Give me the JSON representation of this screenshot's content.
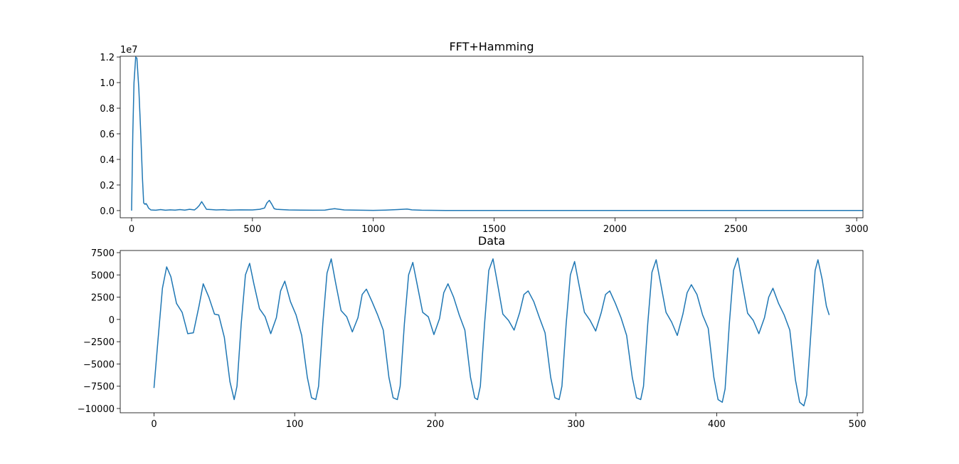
{
  "chart_data": [
    {
      "type": "line",
      "title": "FFT+Hamming",
      "offset_label": "1e7",
      "xlim": [
        -47,
        3026
      ],
      "xticks": [
        0,
        500,
        1000,
        1500,
        2000,
        2500,
        3000
      ],
      "ylim": [
        -0.056,
        1.206
      ],
      "yticks": [
        {
          "value": 0,
          "label": "0.0"
        },
        {
          "value": 0.2,
          "label": "0.2"
        },
        {
          "value": 0.4,
          "label": "0.4"
        },
        {
          "value": 0.6,
          "label": "0.6"
        },
        {
          "value": 0.8,
          "label": "0.8"
        },
        {
          "value": 1,
          "label": "1.0"
        },
        {
          "value": 1.2,
          "label": "1.2"
        }
      ],
      "grid": false,
      "series": [
        {
          "color": "#1f77b4",
          "x": [
            0,
            5,
            10,
            17,
            22,
            30,
            38,
            45,
            50,
            55,
            60,
            65,
            70,
            80,
            100,
            120,
            140,
            160,
            180,
            200,
            220,
            240,
            260,
            270,
            280,
            290,
            300,
            310,
            330,
            350,
            380,
            400,
            450,
            500,
            530,
            550,
            560,
            570,
            580,
            590,
            600,
            620,
            650,
            700,
            750,
            800,
            820,
            840,
            860,
            880,
            950,
            1000,
            1050,
            1100,
            1120,
            1140,
            1160,
            1200,
            1300,
            1500,
            2000,
            2500,
            3025
          ],
          "values": [
            0,
            0.6,
            1.0,
            1.2,
            1.19,
            0.95,
            0.6,
            0.25,
            0.06,
            0.05,
            0.055,
            0.04,
            0.02,
            0.005,
            0.003,
            0.008,
            0.003,
            0.006,
            0.004,
            0.008,
            0.004,
            0.01,
            0.005,
            0.02,
            0.04,
            0.07,
            0.04,
            0.01,
            0.008,
            0.005,
            0.007,
            0.004,
            0.006,
            0.005,
            0.01,
            0.02,
            0.06,
            0.08,
            0.05,
            0.015,
            0.01,
            0.008,
            0.005,
            0.004,
            0.003,
            0.004,
            0.01,
            0.015,
            0.01,
            0.005,
            0.003,
            0.002,
            0.004,
            0.008,
            0.01,
            0.012,
            0.006,
            0.003,
            0.001,
            0.001,
            0.001,
            0.001,
            0.001
          ]
        }
      ]
    },
    {
      "type": "line",
      "title": "Data",
      "xlim": [
        -24,
        504
      ],
      "xticks": [
        0,
        100,
        200,
        300,
        400,
        500
      ],
      "ylim": [
        -10480,
        7740
      ],
      "yticks": [
        {
          "value": -10000,
          "label": "−10000"
        },
        {
          "value": -7500,
          "label": "−7500"
        },
        {
          "value": -5000,
          "label": "−5000"
        },
        {
          "value": -2500,
          "label": "−2500"
        },
        0,
        2500,
        5000,
        7500
      ],
      "grid": false,
      "series": [
        {
          "color": "#1f77b4",
          "x": [
            0,
            3,
            6,
            9,
            12,
            16,
            20,
            24,
            28,
            32,
            35,
            39,
            43,
            46,
            50,
            54,
            57,
            59,
            62,
            65,
            68,
            71,
            75,
            79,
            83,
            87,
            90,
            93,
            97,
            101,
            105,
            109,
            112,
            115,
            117,
            120,
            123,
            126,
            129,
            133,
            137,
            141,
            145,
            148,
            151,
            155,
            159,
            163,
            167,
            170,
            173,
            175,
            178,
            181,
            184,
            187,
            191,
            195,
            199,
            203,
            206,
            209,
            213,
            217,
            221,
            225,
            228,
            230,
            232,
            235,
            238,
            241,
            244,
            248,
            252,
            256,
            260,
            263,
            266,
            270,
            274,
            278,
            282,
            285,
            288,
            290,
            293,
            296,
            299,
            302,
            306,
            310,
            314,
            318,
            321,
            324,
            328,
            332,
            336,
            340,
            343,
            346,
            348,
            351,
            354,
            357,
            360,
            364,
            368,
            372,
            376,
            379,
            382,
            386,
            390,
            394,
            398,
            401,
            404,
            406,
            409,
            412,
            415,
            418,
            422,
            426,
            430,
            434,
            437,
            440,
            444,
            448,
            452,
            456,
            459,
            462,
            464,
            467,
            470,
            472,
            475,
            478,
            480
          ],
          "values": [
            -7700,
            -2000,
            3500,
            5900,
            4800,
            1800,
            800,
            -1600,
            -1500,
            1500,
            4000,
            2500,
            600,
            500,
            -2000,
            -7000,
            -9000,
            -7500,
            -500,
            5000,
            6300,
            4000,
            1200,
            300,
            -1600,
            200,
            3200,
            4300,
            2000,
            500,
            -1800,
            -6500,
            -8800,
            -9000,
            -7500,
            -500,
            5200,
            6800,
            4200,
            1000,
            300,
            -1400,
            200,
            2800,
            3400,
            2000,
            500,
            -1200,
            -6500,
            -8800,
            -9000,
            -7500,
            -500,
            5000,
            6400,
            4000,
            800,
            300,
            -1700,
            100,
            3000,
            4000,
            2500,
            500,
            -1200,
            -6500,
            -8800,
            -9000,
            -7500,
            -500,
            5500,
            6800,
            4200,
            600,
            -100,
            -1200,
            800,
            2800,
            3200,
            2000,
            200,
            -1500,
            -6500,
            -8800,
            -9000,
            -7500,
            -500,
            5000,
            6500,
            4000,
            800,
            -100,
            -1300,
            800,
            2800,
            3200,
            1800,
            200,
            -1800,
            -6500,
            -8800,
            -9000,
            -7500,
            -500,
            5300,
            6700,
            4200,
            800,
            -300,
            -1800,
            600,
            3000,
            3900,
            2800,
            500,
            -1000,
            -6500,
            -9000,
            -9300,
            -7800,
            -500,
            5500,
            6900,
            4200,
            700,
            -100,
            -1600,
            200,
            2500,
            3500,
            1800,
            500,
            -1200,
            -6800,
            -9300,
            -9700,
            -8500,
            -1500,
            5500,
            6700,
            4500,
            1500,
            500
          ]
        }
      ]
    }
  ]
}
